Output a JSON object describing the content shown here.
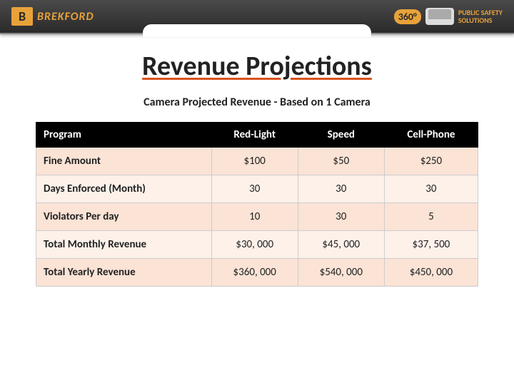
{
  "header": {
    "logo_letter": "B",
    "brand_name": "BREKFORD",
    "badge_360": "360°",
    "safety_line1": "PUBLIC SAFETY",
    "safety_line2": "SOLUTIONS"
  },
  "title": "Revenue Projections",
  "subtitle": "Camera Projected Revenue - Based on 1 Camera",
  "table": {
    "columns": [
      "Program",
      "Red-Light",
      "Speed",
      "Cell-Phone"
    ],
    "rows": [
      {
        "label": "Fine Amount",
        "cells": [
          "$100",
          "$50",
          "$250"
        ]
      },
      {
        "label": "Days Enforced (Month)",
        "cells": [
          "30",
          "30",
          "30"
        ]
      },
      {
        "label": "Violators Per day",
        "cells": [
          "10",
          "30",
          "5"
        ]
      },
      {
        "label": "Total Monthly Revenue",
        "cells": [
          "$30, 000",
          "$45, 000",
          "$37, 500"
        ]
      },
      {
        "label": "Total Yearly Revenue",
        "cells": [
          "$360, 000",
          "$540, 000",
          "$450, 000"
        ]
      }
    ],
    "header_bg": "#000000",
    "header_fg": "#ffffff",
    "row_odd_bg": "#fbe3d5",
    "row_even_bg": "#fdf1ea",
    "border_color": "#cccccc",
    "font_size": 15
  },
  "colors": {
    "accent_orange": "#e8a23a",
    "underline": "#d9531e",
    "header_gradient_top": "#4a4a4a",
    "header_gradient_bottom": "#2a2a2a",
    "background": "#ffffff"
  }
}
